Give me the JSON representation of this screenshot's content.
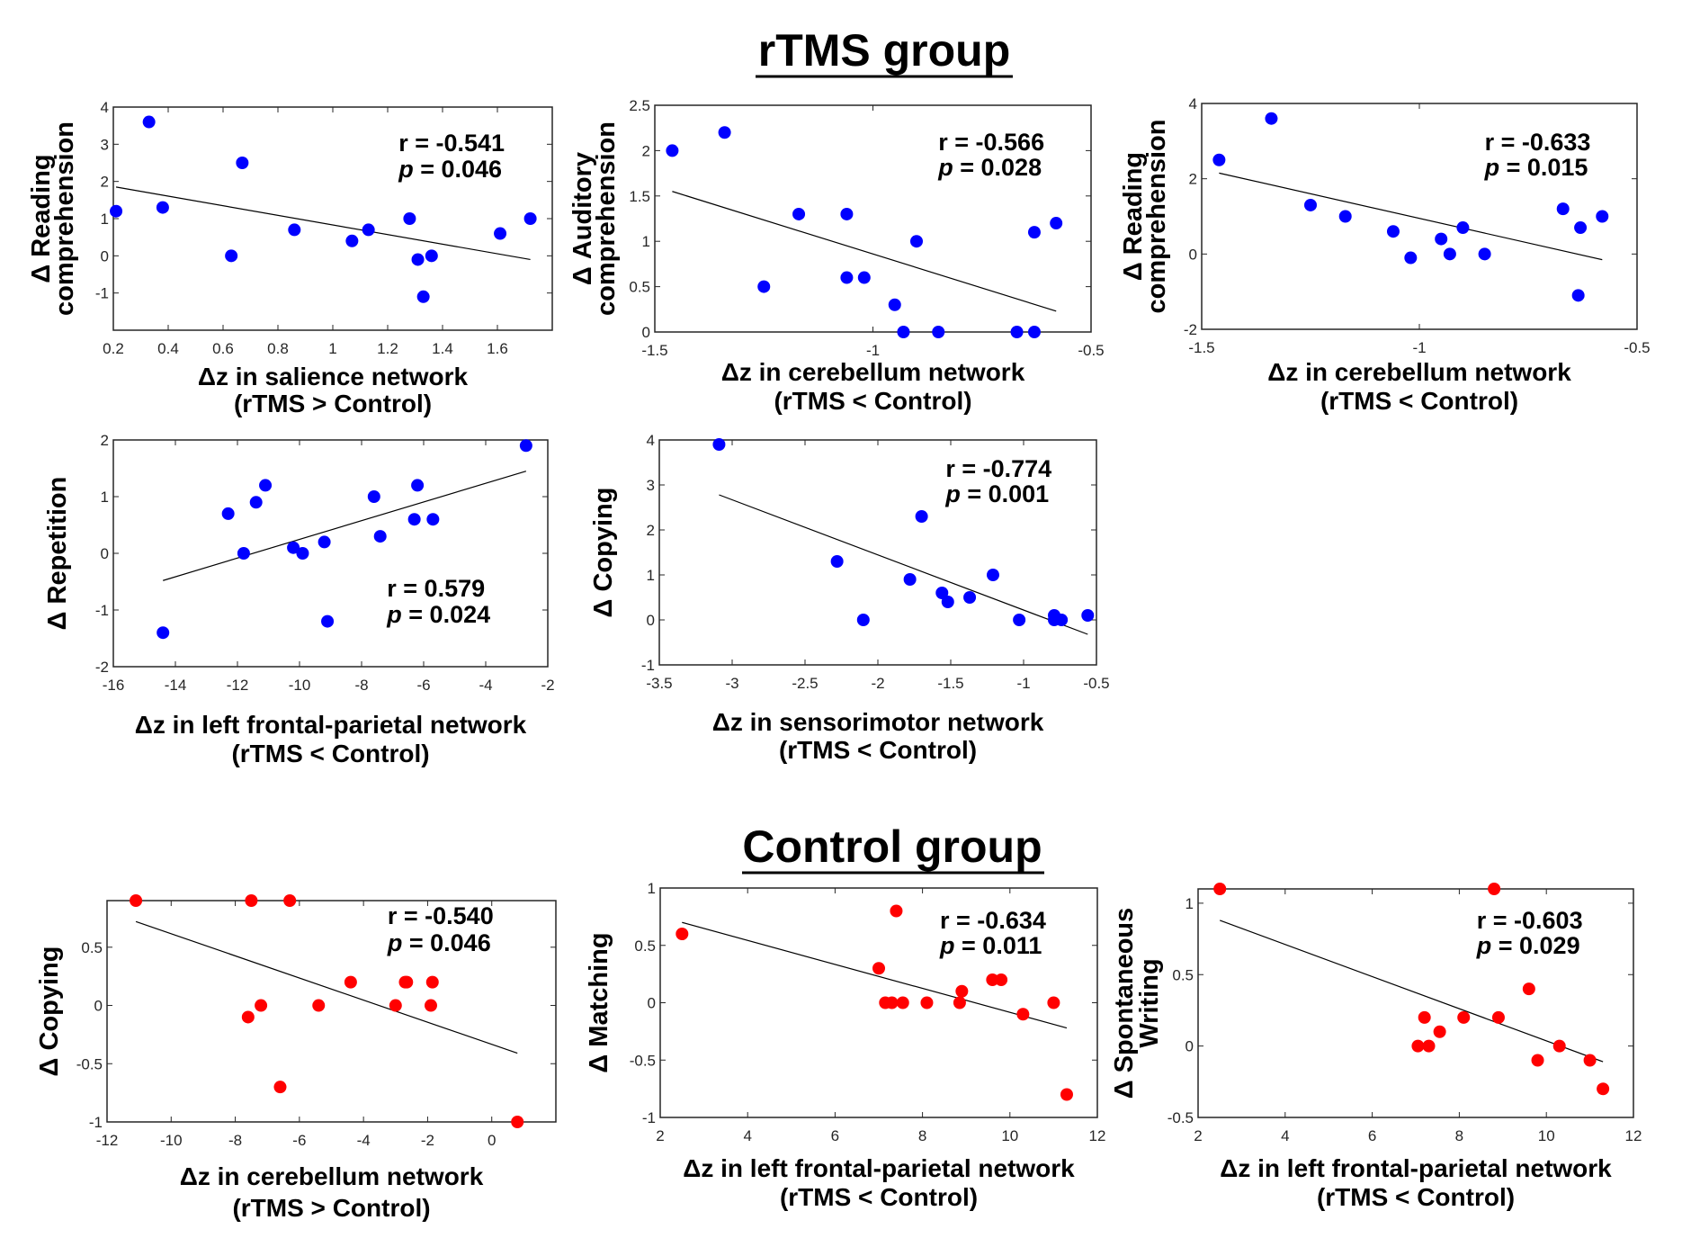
{
  "titles": {
    "rtms": "rTMS group",
    "control": "Control group"
  },
  "chart_data": [
    {
      "type": "scatter",
      "group": "rTMS group",
      "color": "#0000ff",
      "ylabel": [
        "Δ Reading",
        "comprehension"
      ],
      "xlabel": [
        "Δz in salience network",
        "(rTMS > Control)"
      ],
      "xlim": [
        0.2,
        1.8
      ],
      "ylim": [
        -2,
        4
      ],
      "xticks": [
        0.2,
        0.4,
        0.6,
        0.8,
        1,
        1.2,
        1.4,
        1.6
      ],
      "yticks": [
        -1,
        0,
        1,
        2,
        3,
        4
      ],
      "x": [
        0.21,
        0.33,
        0.38,
        0.63,
        0.67,
        0.86,
        1.07,
        1.13,
        1.28,
        1.31,
        1.36,
        1.33,
        1.61,
        1.72
      ],
      "y": [
        1.2,
        3.6,
        1.3,
        0,
        2.5,
        0.7,
        0.4,
        0.7,
        1.0,
        -0.1,
        0,
        -1.1,
        0.6,
        1.0
      ],
      "fit_line": {
        "x": [
          0.21,
          1.72
        ],
        "y": [
          1.85,
          -0.1
        ]
      },
      "stats": {
        "r": "r = -0.541",
        "p_symbol": "p",
        "p_rest": " = 0.046"
      }
    },
    {
      "type": "scatter",
      "group": "rTMS group",
      "color": "#0000ff",
      "ylabel": [
        "Δ Auditory",
        "comprehension"
      ],
      "xlabel": [
        "Δz in cerebellum network",
        "(rTMS < Control)"
      ],
      "xlim": [
        -1.5,
        -0.5
      ],
      "ylim": [
        0,
        2.5
      ],
      "xticks": [
        -1.5,
        -1,
        -0.5
      ],
      "yticks": [
        0,
        0.5,
        1,
        1.5,
        2,
        2.5
      ],
      "x": [
        -1.46,
        -1.34,
        -1.25,
        -1.17,
        -1.06,
        -1.06,
        -1.02,
        -0.95,
        -0.93,
        -0.9,
        -0.85,
        -0.67,
        -0.63,
        -0.63,
        -0.58
      ],
      "y": [
        2.0,
        2.2,
        0.5,
        1.3,
        1.3,
        0.6,
        0.6,
        0.3,
        0,
        1.0,
        0,
        0,
        0,
        1.1,
        1.2
      ],
      "fit_line": {
        "x": [
          -1.46,
          -0.58
        ],
        "y": [
          1.55,
          0.23
        ]
      },
      "stats": {
        "r": "r = -0.566",
        "p_symbol": "p",
        "p_rest": " = 0.028"
      }
    },
    {
      "type": "scatter",
      "group": "rTMS group",
      "color": "#0000ff",
      "ylabel": [
        "Δ Reading",
        "comprehension"
      ],
      "xlabel": [
        "Δz in cerebellum network",
        "(rTMS < Control)"
      ],
      "xlim": [
        -1.5,
        -0.5
      ],
      "ylim": [
        -2,
        4
      ],
      "xticks": [
        -1.5,
        -1,
        -0.5
      ],
      "yticks": [
        -2,
        0,
        2,
        4
      ],
      "x": [
        -1.46,
        -1.34,
        -1.25,
        -1.17,
        -1.06,
        -1.02,
        -0.95,
        -0.93,
        -0.9,
        -0.85,
        -0.67,
        -0.63,
        -0.635,
        -0.58
      ],
      "y": [
        2.5,
        3.6,
        1.3,
        1.0,
        0.6,
        -0.1,
        0.4,
        0,
        0.7,
        0,
        1.2,
        0.7,
        -1.1,
        1.0
      ],
      "fit_line": {
        "x": [
          -1.46,
          -0.58
        ],
        "y": [
          2.15,
          -0.15
        ]
      },
      "stats": {
        "r": "r = -0.633",
        "p_symbol": "p",
        "p_rest": " = 0.015"
      }
    },
    {
      "type": "scatter",
      "group": "rTMS group",
      "color": "#0000ff",
      "ylabel": [
        "Δ Repetition"
      ],
      "xlabel": [
        "Δz in left frontal-parietal network",
        "(rTMS < Control)"
      ],
      "xlim": [
        -16,
        -2
      ],
      "ylim": [
        -2,
        2
      ],
      "xticks": [
        -16,
        -14,
        -12,
        -10,
        -8,
        -6,
        -4,
        -2
      ],
      "yticks": [
        -2,
        -1,
        0,
        1,
        2
      ],
      "x": [
        -14.4,
        -12.3,
        -11.8,
        -11.4,
        -11.1,
        -10.2,
        -9.9,
        -9.2,
        -9.1,
        -7.6,
        -7.4,
        -6.3,
        -6.2,
        -5.7,
        -2.7
      ],
      "y": [
        -1.4,
        0.7,
        0,
        0.9,
        1.2,
        0.1,
        0,
        0.2,
        -1.2,
        1.0,
        0.3,
        0.6,
        1.2,
        0.6,
        1.9
      ],
      "fit_line": {
        "x": [
          -14.4,
          -2.7
        ],
        "y": [
          -0.48,
          1.45
        ]
      },
      "stats": {
        "r": "r = 0.579",
        "p_symbol": "p",
        "p_rest": " = 0.024"
      }
    },
    {
      "type": "scatter",
      "group": "rTMS group",
      "color": "#0000ff",
      "ylabel": [
        "Δ Copying"
      ],
      "xlabel": [
        "Δz in sensorimotor network",
        "(rTMS < Control)"
      ],
      "xlim": [
        -3.5,
        -0.5
      ],
      "ylim": [
        -1,
        4
      ],
      "xticks": [
        -3.5,
        -3,
        -2.5,
        -2,
        -1.5,
        -1,
        -0.5
      ],
      "yticks": [
        -1,
        0,
        1,
        2,
        3,
        4
      ],
      "x": [
        -3.09,
        -2.28,
        -2.1,
        -1.78,
        -1.7,
        -1.56,
        -1.52,
        -1.37,
        -1.21,
        -1.03,
        -0.79,
        -0.79,
        -0.74,
        -0.56
      ],
      "y": [
        3.9,
        1.3,
        0,
        0.9,
        2.3,
        0.6,
        0.4,
        0.5,
        1.0,
        0,
        0.1,
        0,
        0,
        0.1
      ],
      "fit_line": {
        "x": [
          -3.09,
          -0.56
        ],
        "y": [
          2.78,
          -0.32
        ]
      },
      "stats": {
        "r": "r = -0.774",
        "p_symbol": "p",
        "p_rest": " = 0.001"
      }
    },
    {
      "type": "scatter",
      "group": "Control group",
      "color": "#ff0000",
      "ylabel": [
        "Δ Copying"
      ],
      "xlabel": [
        "Δz in cerebellum network",
        "(rTMS > Control)"
      ],
      "xlim": [
        -12,
        2
      ],
      "ylim": [
        -1,
        0.9
      ],
      "xticks": [
        -12,
        -10,
        -8,
        -6,
        -4,
        -2,
        0
      ],
      "yticks": [
        -1,
        -0.5,
        0,
        0.5
      ],
      "x": [
        -11.1,
        -7.5,
        -6.3,
        -7.6,
        -7.2,
        -6.6,
        -5.4,
        -4.4,
        -3.0,
        -2.7,
        -2.65,
        -1.9,
        -1.85,
        0.8
      ],
      "y": [
        0.9,
        0.9,
        0.9,
        -0.1,
        0,
        -0.7,
        0,
        0.2,
        0,
        0.2,
        0.2,
        0,
        0.2,
        -1.0
      ],
      "fit_line": {
        "x": [
          -11.1,
          0.8
        ],
        "y": [
          0.72,
          -0.41
        ]
      },
      "stats": {
        "r": "r = -0.540",
        "p_symbol": "p",
        "p_rest": " = 0.046"
      }
    },
    {
      "type": "scatter",
      "group": "Control group",
      "color": "#ff0000",
      "ylabel": [
        "Δ Matching"
      ],
      "xlabel": [
        "Δz in left frontal-parietal network",
        "(rTMS < Control)"
      ],
      "xlim": [
        2,
        12
      ],
      "ylim": [
        -1,
        1
      ],
      "xticks": [
        2,
        4,
        6,
        8,
        10,
        12
      ],
      "yticks": [
        -1,
        -0.5,
        0,
        0.5,
        1
      ],
      "x": [
        2.5,
        7.0,
        7.15,
        7.3,
        7.4,
        7.55,
        8.1,
        8.85,
        8.9,
        9.6,
        9.8,
        10.3,
        11.0,
        11.3
      ],
      "y": [
        0.6,
        0.3,
        0,
        0,
        0.8,
        0,
        0,
        0,
        0.1,
        0.2,
        0.2,
        -0.1,
        0,
        -0.8
      ],
      "fit_line": {
        "x": [
          2.5,
          11.3
        ],
        "y": [
          0.7,
          -0.22
        ]
      },
      "stats": {
        "r": "r = -0.634",
        "p_symbol": "p",
        "p_rest": " = 0.011"
      }
    },
    {
      "type": "scatter",
      "group": "Control group",
      "color": "#ff0000",
      "ylabel": [
        "Δ Spontaneous",
        "Writing"
      ],
      "xlabel": [
        "Δz in left frontal-parietal network",
        "(rTMS < Control)"
      ],
      "xlim": [
        2,
        12
      ],
      "ylim": [
        -0.5,
        1.1
      ],
      "xticks": [
        2,
        4,
        6,
        8,
        10,
        12
      ],
      "yticks": [
        -0.5,
        0,
        0.5,
        1
      ],
      "x": [
        2.5,
        8.8,
        7.05,
        7.2,
        7.3,
        7.55,
        8.1,
        8.9,
        9.6,
        9.8,
        10.3,
        11.0,
        11.3
      ],
      "y": [
        1.1,
        1.1,
        0,
        0.2,
        0,
        0.1,
        0.2,
        0.2,
        0.4,
        -0.1,
        0,
        -0.1,
        -0.3
      ],
      "fit_line": {
        "x": [
          2.5,
          11.3
        ],
        "y": [
          0.88,
          -0.11
        ]
      },
      "stats": {
        "r": "r = -0.603",
        "p_symbol": "p",
        "p_rest": " = 0.029"
      }
    }
  ]
}
